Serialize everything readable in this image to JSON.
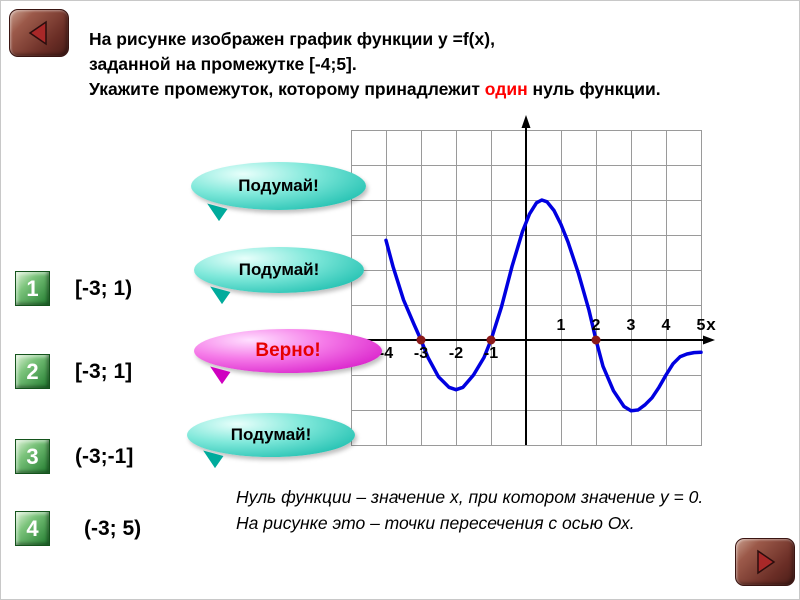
{
  "title": {
    "line1": "На рисунке изображен график функции у =f(x),",
    "line2": "заданной на промежутке [-4;5].",
    "line3_prefix": "Укажите промежуток, которому принадлежит ",
    "line3_highlight": "один",
    "line3_suffix": " нуль функции.",
    "highlight_color": "#ff0000"
  },
  "options": [
    {
      "number": "1",
      "label": "[-3; 1)"
    },
    {
      "number": "2",
      "label": "[-3; 1]"
    },
    {
      "number": "3",
      "label": "(-3;-1]"
    },
    {
      "number": "4",
      "label": "(-3; 5)"
    }
  ],
  "bubbles": [
    {
      "text": "Подумай!",
      "type": "think"
    },
    {
      "text": "Подумай!",
      "type": "think"
    },
    {
      "text": "Верно!",
      "type": "correct"
    },
    {
      "text": "Подумай!",
      "type": "think"
    }
  ],
  "footnote": {
    "line1": "Нуль функции – значение х, при котором значение у = 0.",
    "line2": "На рисунке это – точки пересечения с осью Ох."
  },
  "icons": {
    "back": "back-arrow-icon",
    "forward": "forward-arrow-icon"
  },
  "colors": {
    "think_bubble": "#00b2a2",
    "correct_bubble": "#cf00c0",
    "option_green": "#1f7a2d",
    "nav_maroon": "#6b2e26",
    "highlight_red": "#ff0000",
    "curve_blue": "#0000e0",
    "zero_dot": "#8b1a1a"
  },
  "chart_data": {
    "type": "line",
    "x_domain": [
      -4,
      5
    ],
    "x_tick_labels_negative": [
      "-4",
      "-3",
      "-2",
      "-1"
    ],
    "x_tick_labels_positive": [
      "1",
      "2",
      "3",
      "4",
      "5"
    ],
    "x_axis_label": "x",
    "grid": true,
    "zeros_marked": [
      -3,
      -1,
      2
    ],
    "curve_color": "#0000e0",
    "zero_dot_color": "#8b1a1a",
    "points": [
      [
        -4,
        2.85
      ],
      [
        -3.8,
        2.1
      ],
      [
        -3.5,
        1.15
      ],
      [
        -3.2,
        0.45
      ],
      [
        -3,
        0
      ],
      [
        -2.8,
        -0.5
      ],
      [
        -2.5,
        -1.05
      ],
      [
        -2.2,
        -1.35
      ],
      [
        -2,
        -1.42
      ],
      [
        -1.8,
        -1.35
      ],
      [
        -1.5,
        -1.0
      ],
      [
        -1.2,
        -0.5
      ],
      [
        -1,
        0
      ],
      [
        -0.7,
        0.95
      ],
      [
        -0.4,
        2.1
      ],
      [
        -0.1,
        3.1
      ],
      [
        0.1,
        3.6
      ],
      [
        0.3,
        3.92
      ],
      [
        0.45,
        4.0
      ],
      [
        0.6,
        3.95
      ],
      [
        0.8,
        3.7
      ],
      [
        1,
        3.3
      ],
      [
        1.2,
        2.8
      ],
      [
        1.5,
        1.9
      ],
      [
        1.8,
        0.85
      ],
      [
        2,
        0
      ],
      [
        2.2,
        -0.75
      ],
      [
        2.5,
        -1.45
      ],
      [
        2.8,
        -1.9
      ],
      [
        3,
        -2.02
      ],
      [
        3.2,
        -2.0
      ],
      [
        3.4,
        -1.85
      ],
      [
        3.6,
        -1.65
      ],
      [
        3.8,
        -1.35
      ],
      [
        4,
        -1.0
      ],
      [
        4.2,
        -0.68
      ],
      [
        4.4,
        -0.48
      ],
      [
        4.6,
        -0.4
      ],
      [
        4.8,
        -0.36
      ],
      [
        5,
        -0.35
      ]
    ]
  }
}
